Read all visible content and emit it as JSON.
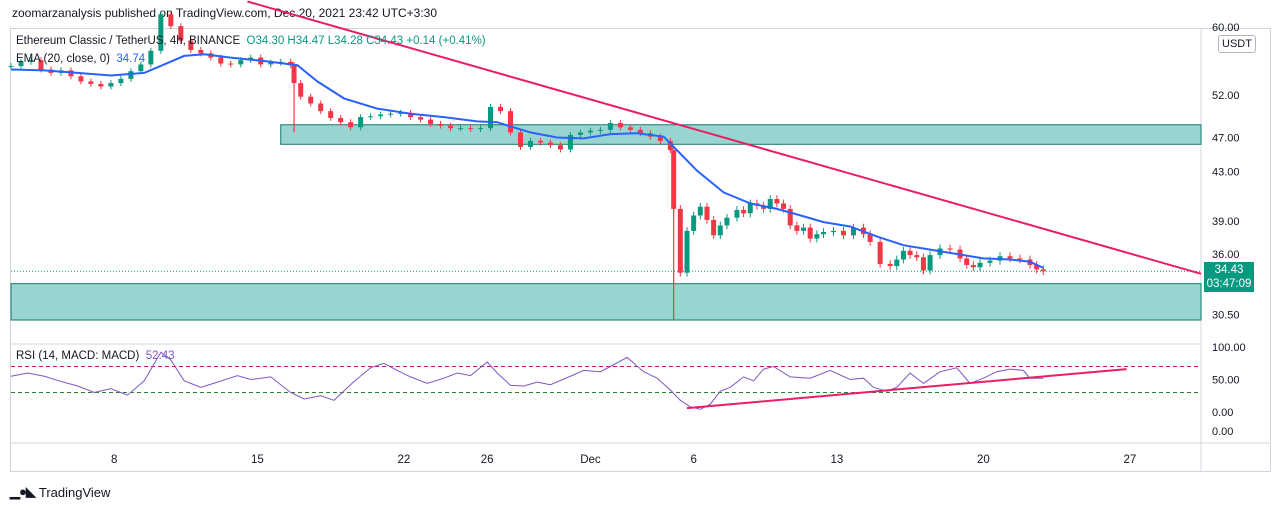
{
  "publisher": "zoomarzanalysis published on TradingView.com, Dec 20, 2021 23:42 UTC+3:30",
  "currency_button": "USDT",
  "legend": {
    "symbol": "Ethereum Classic / TetherUS, 4h, BINANCE",
    "ohlc": "O34.30 H34.47 L34.28 C34.43 +0.14 (+0.41%)",
    "ema_label": "EMA (20, close, 0)",
    "ema_value": "34.74"
  },
  "rsi_legend": {
    "label": "RSI (14, MACD: MACD)",
    "value": "52.43"
  },
  "price_tag": {
    "price": "34.43",
    "countdown": "03:47:09"
  },
  "footer": {
    "brand": "TradingView"
  },
  "colors": {
    "up": "#089981",
    "down": "#f23645",
    "ema": "#2962ff",
    "trend": "#e91e63",
    "zone": "#80cbc4",
    "rsi": "#7e57c2"
  },
  "chart_data": [
    {
      "type": "candlestick",
      "x_ticks": [
        "8",
        "15",
        "22",
        "26",
        "Dec",
        "6",
        "13",
        "20",
        "27"
      ],
      "y_ticks": [
        "60.00",
        "52.00",
        "47.00",
        "43.00",
        "39.00",
        "36.00",
        "30.50"
      ],
      "last_price": 34.43,
      "close_path": [
        [
          0,
          55.4
        ],
        [
          3,
          55.9
        ],
        [
          6,
          56.1
        ],
        [
          9,
          55.0
        ],
        [
          12,
          54.6
        ],
        [
          15,
          54.9
        ],
        [
          18,
          54.2
        ],
        [
          21,
          53.6
        ],
        [
          24,
          53.3
        ],
        [
          27,
          53.0
        ],
        [
          30,
          53.4
        ],
        [
          33,
          53.9
        ],
        [
          36,
          54.8
        ],
        [
          39,
          55.6
        ],
        [
          42,
          57.2
        ],
        [
          45,
          61.5
        ],
        [
          48,
          60.1
        ],
        [
          51,
          58.4
        ],
        [
          54,
          57.3
        ],
        [
          57,
          56.9
        ],
        [
          60,
          56.4
        ],
        [
          63,
          55.7
        ],
        [
          66,
          55.6
        ],
        [
          69,
          56.1
        ],
        [
          72,
          56.4
        ],
        [
          75,
          55.6
        ],
        [
          78,
          55.8
        ],
        [
          81,
          55.9
        ],
        [
          84,
          55.5
        ],
        [
          85,
          53.4
        ],
        [
          87,
          51.8
        ],
        [
          90,
          51.0
        ],
        [
          93,
          50.1
        ],
        [
          96,
          49.3
        ],
        [
          99,
          48.8
        ],
        [
          102,
          48.2
        ],
        [
          105,
          49.4
        ],
        [
          108,
          49.5
        ],
        [
          111,
          49.7
        ],
        [
          114,
          49.8
        ],
        [
          117,
          49.9
        ],
        [
          120,
          49.4
        ],
        [
          123,
          49.1
        ],
        [
          126,
          48.6
        ],
        [
          129,
          48.4
        ],
        [
          132,
          48.1
        ],
        [
          135,
          48.1
        ],
        [
          138,
          48.0
        ],
        [
          141,
          48.1
        ],
        [
          144,
          50.6
        ],
        [
          147,
          50.1
        ],
        [
          150,
          47.6
        ],
        [
          153,
          45.9
        ],
        [
          156,
          46.6
        ],
        [
          159,
          46.4
        ],
        [
          162,
          46.1
        ],
        [
          165,
          45.6
        ],
        [
          168,
          47.3
        ],
        [
          171,
          47.6
        ],
        [
          174,
          47.8
        ],
        [
          177,
          47.9
        ],
        [
          180,
          48.7
        ],
        [
          183,
          48.2
        ],
        [
          186,
          47.9
        ],
        [
          189,
          47.5
        ],
        [
          192,
          47.1
        ],
        [
          195,
          46.6
        ],
        [
          198,
          45.5
        ],
        [
          199,
          40.1
        ],
        [
          201,
          34.3
        ],
        [
          203,
          38.1
        ],
        [
          205,
          39.5
        ],
        [
          207,
          40.3
        ],
        [
          209,
          39.1
        ],
        [
          211,
          37.7
        ],
        [
          213,
          38.6
        ],
        [
          215,
          39.3
        ],
        [
          218,
          40.0
        ],
        [
          220,
          39.7
        ],
        [
          222,
          40.6
        ],
        [
          224,
          40.4
        ],
        [
          226,
          40.1
        ],
        [
          228,
          41.0
        ],
        [
          230,
          40.6
        ],
        [
          232,
          40.1
        ],
        [
          234,
          38.6
        ],
        [
          236,
          38.1
        ],
        [
          238,
          38.4
        ],
        [
          240,
          37.4
        ],
        [
          242,
          37.8
        ],
        [
          244,
          38.0
        ],
        [
          247,
          38.1
        ],
        [
          250,
          37.7
        ],
        [
          253,
          38.4
        ],
        [
          256,
          37.8
        ],
        [
          258,
          37.1
        ],
        [
          261,
          35.1
        ],
        [
          264,
          34.9
        ],
        [
          266,
          35.5
        ],
        [
          268,
          36.3
        ],
        [
          270,
          35.9
        ],
        [
          272,
          35.7
        ],
        [
          274,
          34.5
        ],
        [
          276,
          35.9
        ],
        [
          279,
          36.5
        ],
        [
          282,
          36.4
        ],
        [
          285,
          35.6
        ],
        [
          287,
          35.0
        ],
        [
          289,
          34.8
        ],
        [
          291,
          35.2
        ],
        [
          294,
          35.4
        ],
        [
          297,
          35.8
        ],
        [
          300,
          35.6
        ],
        [
          303,
          35.5
        ],
        [
          306,
          35.0
        ],
        [
          308,
          34.6
        ],
        [
          310,
          34.43
        ]
      ],
      "ema_path": [
        [
          0,
          55.0
        ],
        [
          10,
          54.9
        ],
        [
          20,
          54.6
        ],
        [
          30,
          54.3
        ],
        [
          40,
          54.6
        ],
        [
          46,
          55.6
        ],
        [
          52,
          56.6
        ],
        [
          58,
          56.8
        ],
        [
          66,
          56.4
        ],
        [
          76,
          56.0
        ],
        [
          86,
          55.5
        ],
        [
          92,
          53.6
        ],
        [
          100,
          51.6
        ],
        [
          110,
          50.4
        ],
        [
          120,
          49.8
        ],
        [
          130,
          49.4
        ],
        [
          140,
          48.9
        ],
        [
          146,
          48.8
        ],
        [
          150,
          48.3
        ],
        [
          156,
          47.6
        ],
        [
          164,
          47.0
        ],
        [
          172,
          46.9
        ],
        [
          180,
          47.4
        ],
        [
          188,
          47.5
        ],
        [
          196,
          47.1
        ],
        [
          200,
          45.5
        ],
        [
          206,
          43.1
        ],
        [
          214,
          41.6
        ],
        [
          222,
          40.6
        ],
        [
          230,
          40.1
        ],
        [
          236,
          39.6
        ],
        [
          244,
          38.9
        ],
        [
          252,
          38.5
        ],
        [
          260,
          37.6
        ],
        [
          268,
          36.8
        ],
        [
          276,
          36.4
        ],
        [
          284,
          36.0
        ],
        [
          292,
          35.6
        ],
        [
          300,
          35.5
        ],
        [
          306,
          35.3
        ],
        [
          310,
          34.74
        ]
      ],
      "trendline": [
        [
          71,
          63.0
        ],
        [
          365,
          34.2
        ]
      ],
      "zones": [
        {
          "x_start": 81,
          "x_end": 365,
          "y_low": 46.2,
          "y_high": 48.5
        },
        {
          "x_start": 0,
          "x_end": 365,
          "y_low": 30.0,
          "y_high": 33.3
        }
      ],
      "spike_lows": [
        [
          85,
          47.6
        ],
        [
          199,
          30.0
        ],
        [
          227,
          37.0
        ],
        [
          274,
          34.2
        ]
      ]
    },
    {
      "type": "line",
      "series_label": "RSI (14, MACD: MACD)",
      "y_ticks": [
        "100.00",
        "50.00",
        "0.00"
      ],
      "levels": [
        70,
        30
      ],
      "path": [
        [
          0,
          55
        ],
        [
          5,
          60
        ],
        [
          10,
          55
        ],
        [
          15,
          47
        ],
        [
          20,
          40
        ],
        [
          25,
          30
        ],
        [
          30,
          36
        ],
        [
          35,
          26
        ],
        [
          40,
          48
        ],
        [
          45,
          92
        ],
        [
          48,
          80
        ],
        [
          52,
          48
        ],
        [
          57,
          38
        ],
        [
          62,
          46
        ],
        [
          68,
          56
        ],
        [
          72,
          50
        ],
        [
          78,
          54
        ],
        [
          84,
          30
        ],
        [
          88,
          20
        ],
        [
          93,
          25
        ],
        [
          97,
          18
        ],
        [
          103,
          47
        ],
        [
          108,
          68
        ],
        [
          112,
          75
        ],
        [
          116,
          64
        ],
        [
          120,
          54
        ],
        [
          125,
          44
        ],
        [
          130,
          52
        ],
        [
          134,
          60
        ],
        [
          138,
          56
        ],
        [
          143,
          77
        ],
        [
          146,
          60
        ],
        [
          150,
          41
        ],
        [
          154,
          40
        ],
        [
          158,
          46
        ],
        [
          162,
          42
        ],
        [
          168,
          55
        ],
        [
          172,
          64
        ],
        [
          177,
          62
        ],
        [
          180,
          70
        ],
        [
          185,
          84
        ],
        [
          190,
          62
        ],
        [
          194,
          52
        ],
        [
          198,
          34
        ],
        [
          201,
          18
        ],
        [
          204,
          8
        ],
        [
          207,
          4
        ],
        [
          210,
          12
        ],
        [
          213,
          32
        ],
        [
          216,
          38
        ],
        [
          220,
          54
        ],
        [
          223,
          48
        ],
        [
          226,
          66
        ],
        [
          229,
          70
        ],
        [
          234,
          54
        ],
        [
          240,
          52
        ],
        [
          246,
          64
        ],
        [
          252,
          50
        ],
        [
          256,
          52
        ],
        [
          259,
          38
        ],
        [
          263,
          32
        ],
        [
          266,
          38
        ],
        [
          270,
          60
        ],
        [
          274,
          44
        ],
        [
          279,
          62
        ],
        [
          284,
          68
        ],
        [
          288,
          44
        ],
        [
          292,
          52
        ],
        [
          296,
          62
        ],
        [
          300,
          66
        ],
        [
          304,
          64
        ],
        [
          306,
          52
        ],
        [
          310,
          52
        ]
      ],
      "trendline": [
        [
          203,
          6
        ],
        [
          335,
          66
        ]
      ]
    }
  ]
}
